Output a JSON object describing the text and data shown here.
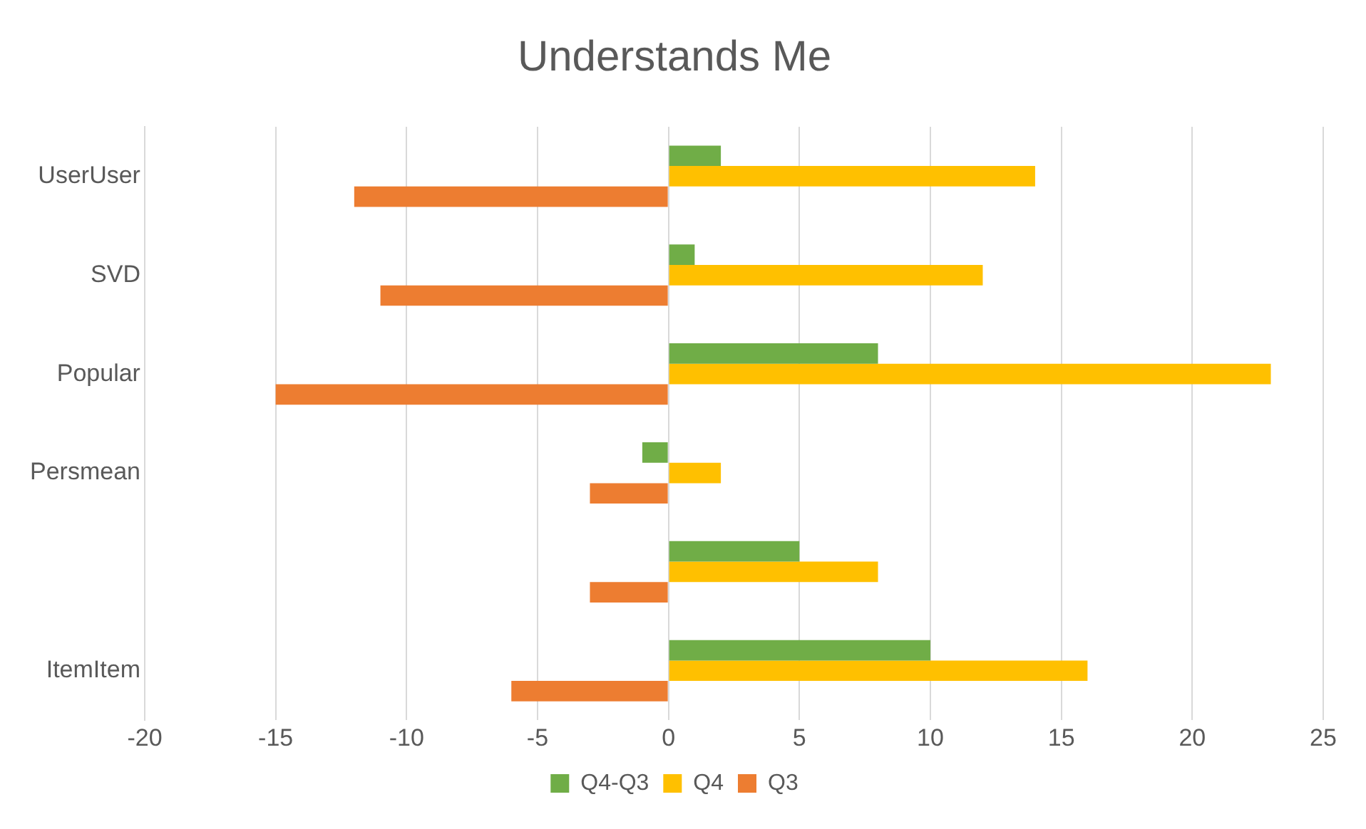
{
  "chart_data": {
    "type": "bar",
    "title": "Understands Me",
    "orientation": "horizontal",
    "categories": [
      "UserUser",
      "SVD",
      "Popular",
      "Persmean",
      null,
      "ItemItem"
    ],
    "series": [
      {
        "name": "Q4-Q3",
        "color": "#70ad47",
        "values": [
          2,
          1,
          8,
          -1,
          5,
          10
        ]
      },
      {
        "name": "Q4",
        "color": "#ffc000",
        "values": [
          14,
          12,
          23,
          2,
          8,
          16
        ]
      },
      {
        "name": "Q3",
        "color": "#ed7d31",
        "values": [
          -12,
          -11,
          -15,
          -3,
          -3,
          -6
        ]
      }
    ],
    "xlim": [
      -20,
      25
    ],
    "xticks": [
      -20,
      -15,
      -10,
      -5,
      0,
      5,
      10,
      15,
      20,
      25
    ],
    "grid": "x",
    "legend": "bottom"
  }
}
